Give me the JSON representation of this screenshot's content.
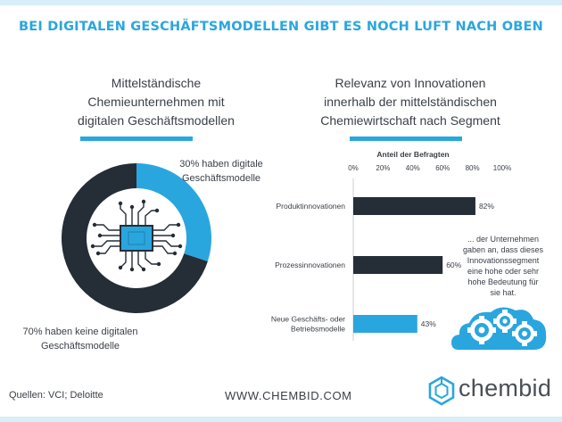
{
  "title": "BEI DIGITALEN GESCHÄFTSMODELLEN GIBT ES NOCH LUFT NACH OBEN",
  "left": {
    "subtitle": [
      "Mittelständische",
      "Chemieunternehmen mit",
      "digitalen Geschäftsmodellen"
    ]
  },
  "right": {
    "subtitle": [
      "Relevanz von Innovationen",
      "innerhalb der mittelständischen",
      "Chemiewirtschaft nach Segment"
    ]
  },
  "chart_data": [
    {
      "type": "pie",
      "slices": [
        {
          "label_lines": [
            "30% haben digitale",
            "Geschäftsmodelle"
          ],
          "value": 30,
          "color": "#2aa6de"
        },
        {
          "label_lines": [
            "70% haben keine digitalen",
            "Geschäftsmodelle"
          ],
          "value": 70,
          "color": "#252d37"
        }
      ]
    },
    {
      "type": "bar",
      "orientation": "horizontal",
      "xlabel": "Anteil der Befragten",
      "xlim": [
        0,
        100
      ],
      "ticks": [
        "0%",
        "20%",
        "40%",
        "60%",
        "80%",
        "100%"
      ],
      "bars": [
        {
          "label_lines": [
            "Produktinnovationen"
          ],
          "value": 82,
          "value_label": "82%",
          "color": "#252d37"
        },
        {
          "label_lines": [
            "Prozessinnovationen"
          ],
          "value": 60,
          "value_label": "60%",
          "color": "#252d37"
        },
        {
          "label_lines": [
            "Neue Geschäfts- oder",
            "Betriebsmodelle"
          ],
          "value": 43,
          "value_label": "43%",
          "color": "#2aa6de"
        }
      ]
    }
  ],
  "note": [
    "... der Unternehmen",
    "gaben an, dass dieses",
    "Innovationssegment",
    "eine hohe oder sehr",
    "hohe Bedeutung für",
    "sie hat."
  ],
  "footer": {
    "sources": "Quellen: VCI; Deloitte",
    "url": "WWW.CHEMBID.COM",
    "logo": "chembid"
  },
  "icons": [
    "chip-icon",
    "gears-cloud-icon",
    "chembid-logo-icon"
  ]
}
